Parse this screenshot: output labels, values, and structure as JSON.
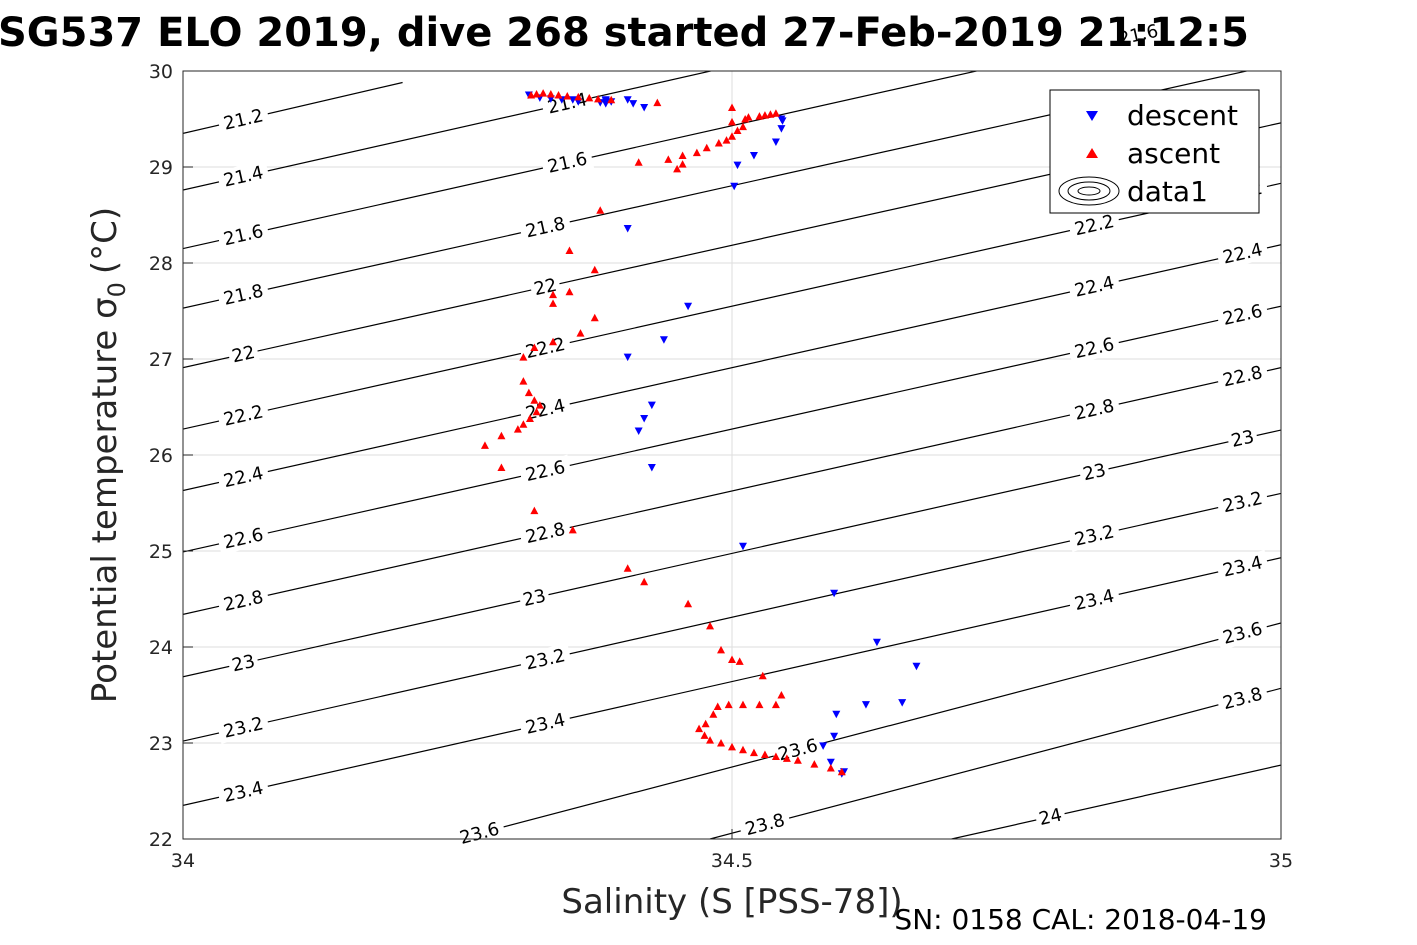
{
  "chart_data": {
    "type": "scatter",
    "title": "SG537 ELO 2019, dive 268 started 27-Feb-2019 21:12:5",
    "xlabel": "Salinity (S [PSS-78])",
    "ylabel": "Potential temperature σ",
    "ylabel_subscript": "0",
    "ylabel_unit": "(°C)",
    "xlim": [
      34,
      35
    ],
    "ylim": [
      22,
      30
    ],
    "xticks": [
      "34",
      "34.5",
      "35"
    ],
    "yticks": [
      "22",
      "23",
      "24",
      "25",
      "26",
      "27",
      "28",
      "29",
      "30"
    ],
    "grid": true,
    "legend_position": "top-right",
    "colors": {
      "descent": "#0000ff",
      "ascent": "#ff0000",
      "contour": "#000000"
    },
    "legend": [
      {
        "label": "descent",
        "marker": "triangle-down",
        "color": "#0000ff"
      },
      {
        "label": "ascent",
        "marker": "triangle-up",
        "color": "#ff0000"
      },
      {
        "label": "data1",
        "marker": "contour",
        "color": "#000000"
      }
    ],
    "contour_levels": [
      "21.2",
      "21.4",
      "21.6",
      "21.8",
      "22",
      "22.2",
      "22.4",
      "22.6",
      "22.8",
      "23",
      "23.2",
      "23.4",
      "23.6",
      "23.8",
      "24"
    ],
    "contour_lines": [
      {
        "level": 21.2,
        "p1": [
          34,
          29.35
        ],
        "p2": [
          34.2,
          29.88
        ],
        "labels": [
          [
            34.055,
            29.5
          ]
        ]
      },
      {
        "level": 21.4,
        "p1": [
          34,
          28.76
        ],
        "p2": [
          34.5,
          30.05
        ],
        "labels": [
          [
            34.055,
            28.91
          ],
          [
            34.35,
            29.53
          ]
        ]
      },
      {
        "level": 21.6,
        "p1": [
          34,
          28.15
        ],
        "p2": [
          34.75,
          30.07
        ],
        "labels": [
          [
            34.055,
            28.3
          ],
          [
            34.35,
            28.94
          ],
          [
            34.87,
            29.53
          ]
        ]
      },
      {
        "level": 21.8,
        "p1": [
          34,
          27.53
        ],
        "p2": [
          35,
          30.08
        ],
        "labels": [
          [
            34.055,
            27.7
          ],
          [
            34.33,
            28.27
          ],
          [
            34.83,
            28.94
          ]
        ]
      },
      {
        "level": 22,
        "p1": [
          34,
          26.91
        ],
        "p2": [
          35,
          29.46
        ],
        "labels": [
          [
            34.055,
            27.08
          ],
          [
            34.33,
            27.68
          ],
          [
            34.83,
            28.27
          ]
        ]
      },
      {
        "level": 22.2,
        "p1": [
          34,
          26.27
        ],
        "p2": [
          35,
          28.83
        ],
        "labels": [
          [
            34.055,
            26.45
          ],
          [
            34.33,
            27.07
          ],
          [
            34.83,
            27.68
          ],
          [
            35.0,
            28.32
          ]
        ]
      },
      {
        "level": 22.4,
        "p1": [
          34,
          25.63
        ],
        "p2": [
          35,
          28.19
        ],
        "labels": [
          [
            34.055,
            25.81
          ],
          [
            34.33,
            26.43
          ],
          [
            34.83,
            27.06
          ],
          [
            35.0,
            27.7
          ]
        ]
      },
      {
        "level": 22.6,
        "p1": [
          34,
          24.99
        ],
        "p2": [
          35,
          27.55
        ],
        "labels": [
          [
            34.055,
            25.17
          ],
          [
            34.33,
            25.8
          ],
          [
            34.83,
            26.43
          ],
          [
            35.0,
            27.06
          ]
        ]
      },
      {
        "level": 22.8,
        "p1": [
          34,
          24.34
        ],
        "p2": [
          35,
          26.91
        ],
        "labels": [
          [
            34.055,
            24.52
          ],
          [
            34.33,
            25.15
          ],
          [
            34.83,
            25.78
          ],
          [
            35.0,
            26.42
          ]
        ]
      },
      {
        "level": 23,
        "p1": [
          34,
          23.69
        ],
        "p2": [
          35,
          26.26
        ],
        "labels": [
          [
            34.055,
            23.85
          ],
          [
            34.32,
            24.48
          ],
          [
            34.83,
            25.1
          ],
          [
            35.0,
            25.76
          ]
        ]
      },
      {
        "level": 23.2,
        "p1": [
          34,
          23.02
        ],
        "p2": [
          35,
          25.6
        ],
        "labels": [
          [
            34.055,
            23.2
          ],
          [
            34.33,
            23.8
          ],
          [
            34.83,
            24.46
          ],
          [
            35.0,
            25.12
          ]
        ]
      },
      {
        "level": 23.4,
        "p1": [
          34,
          22.35
        ],
        "p2": [
          35,
          24.93
        ],
        "labels": [
          [
            34.055,
            22.52
          ],
          [
            34.33,
            23.13
          ],
          [
            34.83,
            23.8
          ],
          [
            35.0,
            24.44
          ]
        ]
      },
      {
        "level": 23.6,
        "p1": [
          34.25,
          22
        ],
        "p2": [
          35,
          24.25
        ],
        "labels": [
          [
            34.27,
            22.19
          ],
          [
            34.56,
            22.93
          ],
          [
            35.0,
            23.77
          ]
        ]
      },
      {
        "level": 23.8,
        "p1": [
          34.48,
          22
        ],
        "p2": [
          35,
          23.57
        ],
        "labels": [
          [
            34.53,
            22.2
          ],
          [
            35.0,
            22.97
          ]
        ]
      },
      {
        "level": 24,
        "p1": [
          34.7,
          22
        ],
        "p2": [
          35,
          22.77
        ],
        "labels": [
          [
            34.79,
            22.2
          ]
        ]
      }
    ],
    "series": [
      {
        "name": "descent",
        "marker": "triangle-down",
        "color": "#0000ff",
        "points": [
          [
            34.315,
            29.75
          ],
          [
            34.325,
            29.72
          ],
          [
            34.335,
            29.71
          ],
          [
            34.345,
            29.7
          ],
          [
            34.355,
            29.7
          ],
          [
            34.36,
            29.68
          ],
          [
            34.38,
            29.67
          ],
          [
            34.385,
            29.66
          ],
          [
            34.39,
            29.68
          ],
          [
            34.385,
            29.69
          ],
          [
            34.385,
            29.7
          ],
          [
            34.405,
            29.7
          ],
          [
            34.41,
            29.66
          ],
          [
            34.42,
            29.62
          ],
          [
            34.545,
            29.5
          ],
          [
            34.546,
            29.48
          ],
          [
            34.545,
            29.4
          ],
          [
            34.54,
            29.26
          ],
          [
            34.52,
            29.12
          ],
          [
            34.505,
            29.02
          ],
          [
            34.502,
            28.8
          ],
          [
            34.405,
            28.36
          ],
          [
            34.46,
            27.55
          ],
          [
            34.438,
            27.2
          ],
          [
            34.405,
            27.02
          ],
          [
            34.427,
            26.52
          ],
          [
            34.42,
            26.38
          ],
          [
            34.415,
            26.25
          ],
          [
            34.427,
            25.87
          ],
          [
            34.51,
            25.05
          ],
          [
            34.593,
            24.56
          ],
          [
            34.632,
            24.05
          ],
          [
            34.668,
            23.8
          ],
          [
            34.655,
            23.42
          ],
          [
            34.622,
            23.4
          ],
          [
            34.595,
            23.3
          ],
          [
            34.593,
            23.07
          ],
          [
            34.583,
            22.97
          ],
          [
            34.59,
            22.8
          ],
          [
            34.602,
            22.7
          ],
          [
            34.6,
            22.68
          ]
        ]
      },
      {
        "name": "ascent",
        "marker": "triangle-up",
        "color": "#ff0000",
        "points": [
          [
            34.317,
            29.75
          ],
          [
            34.322,
            29.76
          ],
          [
            34.328,
            29.77
          ],
          [
            34.335,
            29.76
          ],
          [
            34.342,
            29.75
          ],
          [
            34.35,
            29.74
          ],
          [
            34.36,
            29.73
          ],
          [
            34.37,
            29.72
          ],
          [
            34.378,
            29.71
          ],
          [
            34.39,
            29.7
          ],
          [
            34.432,
            29.67
          ],
          [
            34.5,
            29.62
          ],
          [
            34.54,
            29.56
          ],
          [
            34.535,
            29.55
          ],
          [
            34.53,
            29.54
          ],
          [
            34.525,
            29.53
          ],
          [
            34.515,
            29.52
          ],
          [
            34.512,
            29.5
          ],
          [
            34.5,
            29.47
          ],
          [
            34.51,
            29.42
          ],
          [
            34.505,
            29.38
          ],
          [
            34.5,
            29.32
          ],
          [
            34.495,
            29.28
          ],
          [
            34.488,
            29.25
          ],
          [
            34.477,
            29.2
          ],
          [
            34.468,
            29.15
          ],
          [
            34.455,
            29.12
          ],
          [
            34.442,
            29.08
          ],
          [
            34.415,
            29.05
          ],
          [
            34.455,
            29.03
          ],
          [
            34.45,
            28.98
          ],
          [
            34.38,
            28.55
          ],
          [
            34.352,
            28.13
          ],
          [
            34.375,
            27.93
          ],
          [
            34.352,
            27.7
          ],
          [
            34.337,
            27.67
          ],
          [
            34.337,
            27.58
          ],
          [
            34.375,
            27.43
          ],
          [
            34.362,
            27.27
          ],
          [
            34.337,
            27.18
          ],
          [
            34.32,
            27.12
          ],
          [
            34.31,
            27.02
          ],
          [
            34.31,
            26.77
          ],
          [
            34.315,
            26.65
          ],
          [
            34.32,
            26.57
          ],
          [
            34.325,
            26.52
          ],
          [
            34.322,
            26.45
          ],
          [
            34.316,
            26.38
          ],
          [
            34.31,
            26.32
          ],
          [
            34.305,
            26.27
          ],
          [
            34.29,
            26.2
          ],
          [
            34.275,
            26.1
          ],
          [
            34.29,
            25.87
          ],
          [
            34.32,
            25.42
          ],
          [
            34.355,
            25.22
          ],
          [
            34.405,
            24.82
          ],
          [
            34.42,
            24.68
          ],
          [
            34.46,
            24.45
          ],
          [
            34.48,
            24.22
          ],
          [
            34.49,
            23.97
          ],
          [
            34.5,
            23.87
          ],
          [
            34.507,
            23.85
          ],
          [
            34.528,
            23.7
          ],
          [
            34.545,
            23.5
          ],
          [
            34.54,
            23.4
          ],
          [
            34.525,
            23.4
          ],
          [
            34.51,
            23.4
          ],
          [
            34.497,
            23.4
          ],
          [
            34.487,
            23.38
          ],
          [
            34.483,
            23.3
          ],
          [
            34.476,
            23.2
          ],
          [
            34.47,
            23.15
          ],
          [
            34.475,
            23.08
          ],
          [
            34.48,
            23.03
          ],
          [
            34.49,
            23
          ],
          [
            34.5,
            22.96
          ],
          [
            34.51,
            22.93
          ],
          [
            34.52,
            22.9
          ],
          [
            34.53,
            22.88
          ],
          [
            34.54,
            22.86
          ],
          [
            34.55,
            22.84
          ],
          [
            34.56,
            22.82
          ],
          [
            34.575,
            22.78
          ],
          [
            34.59,
            22.74
          ],
          [
            34.6,
            22.7
          ]
        ]
      }
    ]
  },
  "footer": {
    "text": "SN: 0158  CAL: 2018-04-19"
  }
}
